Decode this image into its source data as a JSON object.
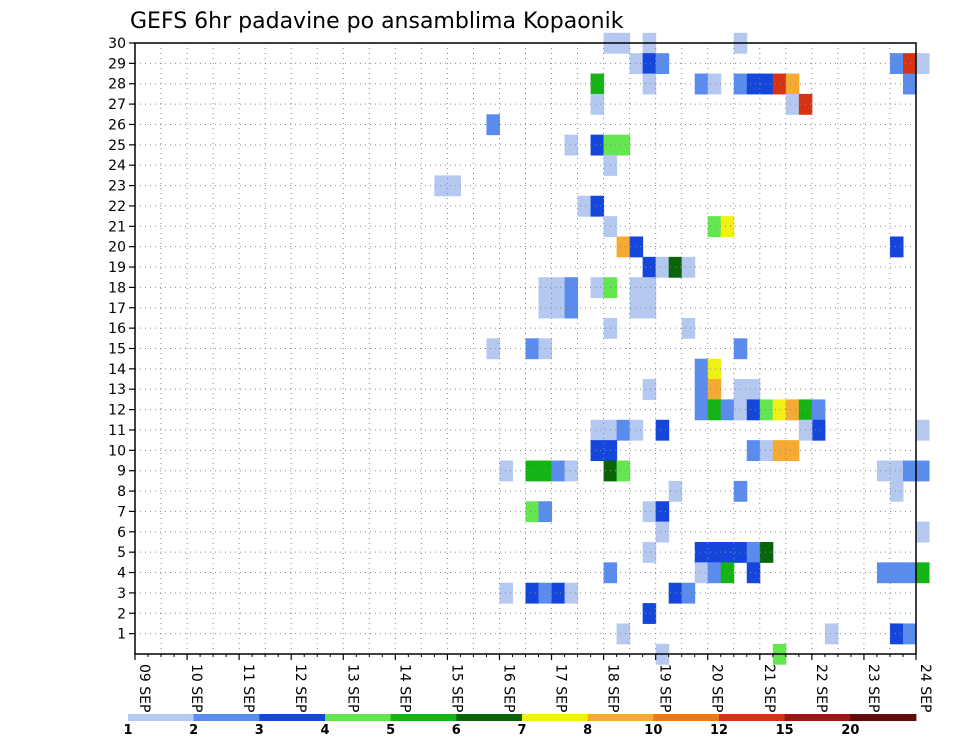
{
  "chart_data": {
    "type": "heatmap",
    "title": "GEFS 6hr padavine po ansamblima Kopaonik",
    "x_tick_labels": [
      "09 SEP",
      "10 SEP",
      "11 SEP",
      "12 SEP",
      "13 SEP",
      "14 SEP",
      "15 SEP",
      "16 SEP",
      "17 SEP",
      "18 SEP",
      "19 SEP",
      "20 SEP",
      "21 SEP",
      "22 SEP",
      "23 SEP",
      "24 SEP"
    ],
    "x_range": [
      "09 SEP 00Z",
      "24 SEP 00Z"
    ],
    "y_tick_labels": [
      "1",
      "2",
      "3",
      "4",
      "5",
      "6",
      "7",
      "8",
      "9",
      "10",
      "11",
      "12",
      "13",
      "14",
      "15",
      "16",
      "17",
      "18",
      "19",
      "20",
      "21",
      "22",
      "23",
      "24",
      "25",
      "26",
      "27",
      "28",
      "29",
      "30"
    ],
    "y_range": [
      0,
      30
    ],
    "grid": true,
    "colorbar": {
      "labels": [
        "1",
        "2",
        "3",
        "4",
        "5",
        "6",
        "7",
        "8",
        "10",
        "12",
        "15",
        "20"
      ],
      "colors": [
        "#b4c8f0",
        "#5a8ced",
        "#1446dc",
        "#64e650",
        "#14b414",
        "#0a640a",
        "#f0f014",
        "#f5aa32",
        "#f07814",
        "#d73214",
        "#a01414",
        "#640a0a"
      ]
    },
    "cells_note": "Each cell: [ensemble member, x position in days after 09 SEP 00Z (6h step), precipitation class index 1-12]",
    "cells": [
      [
        30,
        9.0,
        1
      ],
      [
        30,
        9.25,
        1
      ],
      [
        30,
        9.75,
        1
      ],
      [
        30,
        11.5,
        1
      ],
      [
        29,
        9.5,
        1
      ],
      [
        29,
        9.75,
        3
      ],
      [
        29,
        10.0,
        2
      ],
      [
        29,
        14.5,
        2
      ],
      [
        29,
        14.75,
        10
      ],
      [
        29,
        15.0,
        1
      ],
      [
        28,
        8.75,
        5
      ],
      [
        28,
        9.75,
        1
      ],
      [
        28,
        10.75,
        2
      ],
      [
        28,
        11.0,
        1
      ],
      [
        28,
        11.5,
        2
      ],
      [
        28,
        11.75,
        3
      ],
      [
        28,
        12.0,
        3
      ],
      [
        28,
        12.25,
        10
      ],
      [
        28,
        12.5,
        8
      ],
      [
        28,
        14.75,
        2
      ],
      [
        27,
        8.75,
        1
      ],
      [
        27,
        12.5,
        1
      ],
      [
        27,
        12.75,
        10
      ],
      [
        26,
        6.75,
        2
      ],
      [
        25,
        8.25,
        1
      ],
      [
        25,
        8.75,
        3
      ],
      [
        25,
        9.0,
        4
      ],
      [
        25,
        9.25,
        4
      ],
      [
        24,
        9.0,
        1
      ],
      [
        23,
        5.75,
        1
      ],
      [
        23,
        6.0,
        1
      ],
      [
        22,
        8.5,
        1
      ],
      [
        22,
        8.75,
        3
      ],
      [
        21,
        9.0,
        1
      ],
      [
        21,
        11.0,
        4
      ],
      [
        21,
        11.25,
        7
      ],
      [
        20,
        9.25,
        8
      ],
      [
        20,
        9.5,
        3
      ],
      [
        20,
        14.5,
        3
      ],
      [
        19,
        9.75,
        3
      ],
      [
        19,
        10.0,
        1
      ],
      [
        19,
        10.25,
        6
      ],
      [
        19,
        10.5,
        1
      ],
      [
        18,
        7.75,
        1
      ],
      [
        18,
        8.0,
        1
      ],
      [
        18,
        8.25,
        2
      ],
      [
        18,
        8.75,
        1
      ],
      [
        18,
        9.0,
        4
      ],
      [
        18,
        9.5,
        1
      ],
      [
        18,
        9.75,
        1
      ],
      [
        17,
        7.75,
        1
      ],
      [
        17,
        8.0,
        1
      ],
      [
        17,
        8.25,
        2
      ],
      [
        17,
        9.5,
        1
      ],
      [
        17,
        9.75,
        1
      ],
      [
        16,
        9.0,
        1
      ],
      [
        16,
        10.5,
        1
      ],
      [
        15,
        6.75,
        1
      ],
      [
        15,
        7.5,
        2
      ],
      [
        15,
        7.75,
        1
      ],
      [
        15,
        11.5,
        2
      ],
      [
        14,
        10.75,
        2
      ],
      [
        14,
        11.0,
        7
      ],
      [
        13,
        9.75,
        1
      ],
      [
        13,
        10.75,
        2
      ],
      [
        13,
        11.0,
        8
      ],
      [
        13,
        11.5,
        1
      ],
      [
        13,
        11.75,
        1
      ],
      [
        12,
        10.75,
        2
      ],
      [
        12,
        11.0,
        5
      ],
      [
        12,
        11.25,
        2
      ],
      [
        12,
        11.5,
        1
      ],
      [
        12,
        11.75,
        3
      ],
      [
        12,
        12.0,
        4
      ],
      [
        12,
        12.25,
        7
      ],
      [
        12,
        12.5,
        8
      ],
      [
        12,
        12.75,
        5
      ],
      [
        12,
        13.0,
        2
      ],
      [
        11,
        8.75,
        1
      ],
      [
        11,
        9.0,
        1
      ],
      [
        11,
        9.25,
        2
      ],
      [
        11,
        9.5,
        1
      ],
      [
        11,
        10.0,
        3
      ],
      [
        11,
        13.0,
        3
      ],
      [
        11,
        12.75,
        1
      ],
      [
        11,
        15.0,
        1
      ],
      [
        10,
        8.75,
        3
      ],
      [
        10,
        9.0,
        3
      ],
      [
        10,
        11.75,
        2
      ],
      [
        10,
        12.0,
        1
      ],
      [
        10,
        12.25,
        8
      ],
      [
        10,
        12.5,
        8
      ],
      [
        9,
        7.0,
        1
      ],
      [
        9,
        7.5,
        5
      ],
      [
        9,
        7.75,
        5
      ],
      [
        9,
        8.0,
        2
      ],
      [
        9,
        8.25,
        1
      ],
      [
        9,
        9.0,
        6
      ],
      [
        9,
        9.25,
        4
      ],
      [
        9,
        14.25,
        1
      ],
      [
        9,
        14.5,
        1
      ],
      [
        9,
        14.75,
        2
      ],
      [
        9,
        15.0,
        2
      ],
      [
        8,
        10.25,
        1
      ],
      [
        8,
        11.5,
        2
      ],
      [
        8,
        14.5,
        1
      ],
      [
        7,
        7.5,
        4
      ],
      [
        7,
        7.75,
        2
      ],
      [
        7,
        9.75,
        1
      ],
      [
        7,
        10.0,
        3
      ],
      [
        6,
        10.0,
        1
      ],
      [
        6,
        15.0,
        1
      ],
      [
        5,
        9.75,
        1
      ],
      [
        5,
        10.75,
        3
      ],
      [
        5,
        11.0,
        3
      ],
      [
        5,
        11.25,
        3
      ],
      [
        5,
        11.5,
        3
      ],
      [
        5,
        11.75,
        2
      ],
      [
        5,
        12.0,
        6
      ],
      [
        4,
        9.0,
        2
      ],
      [
        4,
        10.75,
        1
      ],
      [
        4,
        11.0,
        2
      ],
      [
        4,
        11.25,
        5
      ],
      [
        4,
        11.75,
        3
      ],
      [
        4,
        14.25,
        2
      ],
      [
        4,
        14.5,
        2
      ],
      [
        4,
        14.75,
        2
      ],
      [
        4,
        15.0,
        5
      ],
      [
        3,
        7.0,
        1
      ],
      [
        3,
        7.5,
        3
      ],
      [
        3,
        7.75,
        2
      ],
      [
        3,
        8.0,
        3
      ],
      [
        3,
        8.25,
        1
      ],
      [
        3,
        10.25,
        3
      ],
      [
        3,
        10.5,
        2
      ],
      [
        2,
        9.75,
        3
      ],
      [
        1,
        9.25,
        1
      ],
      [
        1,
        13.25,
        1
      ],
      [
        1,
        14.5,
        3
      ],
      [
        1,
        14.75,
        2
      ],
      [
        0,
        10.0,
        1
      ],
      [
        0,
        12.25,
        4
      ]
    ]
  }
}
